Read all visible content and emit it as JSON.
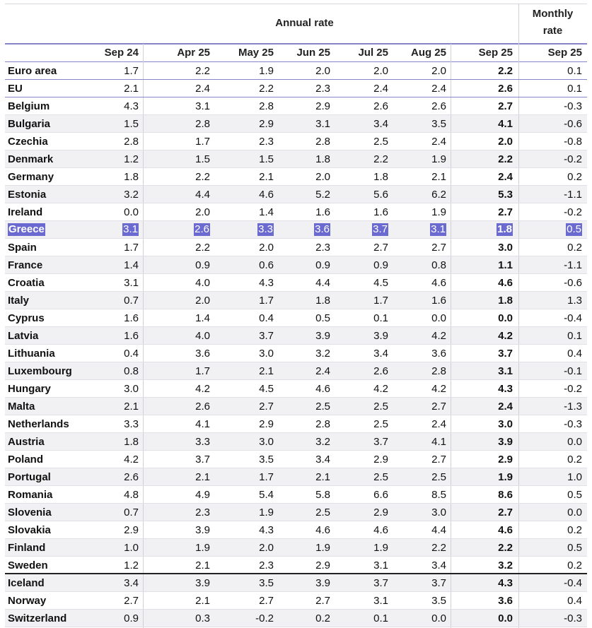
{
  "table": {
    "group_headers": [
      "Annual rate",
      "Monthly rate"
    ],
    "columns": [
      "Sep 24",
      "Apr 25",
      "May 25",
      "Jun 25",
      "Jul 25",
      "Aug 25",
      "Sep 25",
      "Sep 25"
    ],
    "rows": [
      [
        "Euro area",
        "1.7",
        "2.2",
        "1.9",
        "2.0",
        "2.0",
        "2.0",
        "2.2",
        "0.1"
      ],
      [
        "EU",
        "2.1",
        "2.4",
        "2.2",
        "2.3",
        "2.4",
        "2.4",
        "2.6",
        "0.1"
      ],
      [
        "Belgium",
        "4.3",
        "3.1",
        "2.8",
        "2.9",
        "2.6",
        "2.6",
        "2.7",
        "-0.3"
      ],
      [
        "Bulgaria",
        "1.5",
        "2.8",
        "2.9",
        "3.1",
        "3.4",
        "3.5",
        "4.1",
        "-0.6"
      ],
      [
        "Czechia",
        "2.8",
        "1.7",
        "2.3",
        "2.8",
        "2.5",
        "2.4",
        "2.0",
        "-0.8"
      ],
      [
        "Denmark",
        "1.2",
        "1.5",
        "1.5",
        "1.8",
        "2.2",
        "1.9",
        "2.2",
        "-0.2"
      ],
      [
        "Germany",
        "1.8",
        "2.2",
        "2.1",
        "2.0",
        "1.8",
        "2.1",
        "2.4",
        "0.2"
      ],
      [
        "Estonia",
        "3.2",
        "4.4",
        "4.6",
        "5.2",
        "5.6",
        "6.2",
        "5.3",
        "-1.1"
      ],
      [
        "Ireland",
        "0.0",
        "2.0",
        "1.4",
        "1.6",
        "1.6",
        "1.9",
        "2.7",
        "-0.2"
      ],
      [
        "Greece",
        "3.1",
        "2.6",
        "3.3",
        "3.6",
        "3.7",
        "3.1",
        "1.8",
        "0.5"
      ],
      [
        "Spain",
        "1.7",
        "2.2",
        "2.0",
        "2.3",
        "2.7",
        "2.7",
        "3.0",
        "0.2"
      ],
      [
        "France",
        "1.4",
        "0.9",
        "0.6",
        "0.9",
        "0.9",
        "0.8",
        "1.1",
        "-1.1"
      ],
      [
        "Croatia",
        "3.1",
        "4.0",
        "4.3",
        "4.4",
        "4.5",
        "4.6",
        "4.6",
        "-0.6"
      ],
      [
        "Italy",
        "0.7",
        "2.0",
        "1.7",
        "1.8",
        "1.7",
        "1.6",
        "1.8",
        "1.3"
      ],
      [
        "Cyprus",
        "1.6",
        "1.4",
        "0.4",
        "0.5",
        "0.1",
        "0.0",
        "0.0",
        "-0.4"
      ],
      [
        "Latvia",
        "1.6",
        "4.0",
        "3.7",
        "3.9",
        "3.9",
        "4.2",
        "4.2",
        "0.1"
      ],
      [
        "Lithuania",
        "0.4",
        "3.6",
        "3.0",
        "3.2",
        "3.4",
        "3.6",
        "3.7",
        "0.4"
      ],
      [
        "Luxembourg",
        "0.8",
        "1.7",
        "2.1",
        "2.4",
        "2.6",
        "2.8",
        "3.1",
        "-0.1"
      ],
      [
        "Hungary",
        "3.0",
        "4.2",
        "4.5",
        "4.6",
        "4.2",
        "4.2",
        "4.3",
        "-0.2"
      ],
      [
        "Malta",
        "2.1",
        "2.6",
        "2.7",
        "2.5",
        "2.5",
        "2.7",
        "2.4",
        "-1.3"
      ],
      [
        "Netherlands",
        "3.3",
        "4.1",
        "2.9",
        "2.8",
        "2.5",
        "2.4",
        "3.0",
        "-0.3"
      ],
      [
        "Austria",
        "1.8",
        "3.3",
        "3.0",
        "3.2",
        "3.7",
        "4.1",
        "3.9",
        "0.0"
      ],
      [
        "Poland",
        "4.2",
        "3.7",
        "3.5",
        "3.4",
        "2.9",
        "2.7",
        "2.9",
        "0.2"
      ],
      [
        "Portugal",
        "2.6",
        "2.1",
        "1.7",
        "2.1",
        "2.5",
        "2.5",
        "1.9",
        "1.0"
      ],
      [
        "Romania",
        "4.8",
        "4.9",
        "5.4",
        "5.8",
        "6.6",
        "8.5",
        "8.6",
        "0.5"
      ],
      [
        "Slovenia",
        "0.7",
        "2.3",
        "1.9",
        "2.5",
        "2.9",
        "3.0",
        "2.7",
        "0.0"
      ],
      [
        "Slovakia",
        "2.9",
        "3.9",
        "4.3",
        "4.6",
        "4.6",
        "4.4",
        "4.6",
        "0.2"
      ],
      [
        "Finland",
        "1.0",
        "1.9",
        "2.0",
        "1.9",
        "1.9",
        "2.2",
        "2.2",
        "0.5"
      ],
      [
        "Sweden",
        "1.2",
        "2.1",
        "2.3",
        "2.9",
        "3.1",
        "3.4",
        "3.2",
        "0.2"
      ],
      [
        "Iceland",
        "3.4",
        "3.9",
        "3.5",
        "3.9",
        "3.7",
        "3.7",
        "4.3",
        "-0.4"
      ],
      [
        "Norway",
        "2.7",
        "2.1",
        "2.7",
        "2.7",
        "3.1",
        "3.5",
        "3.6",
        "0.4"
      ],
      [
        "Switzerland",
        "0.9",
        "0.3",
        "-0.2",
        "0.2",
        "0.1",
        "0.0",
        "0.0",
        "-0.3"
      ]
    ]
  }
}
